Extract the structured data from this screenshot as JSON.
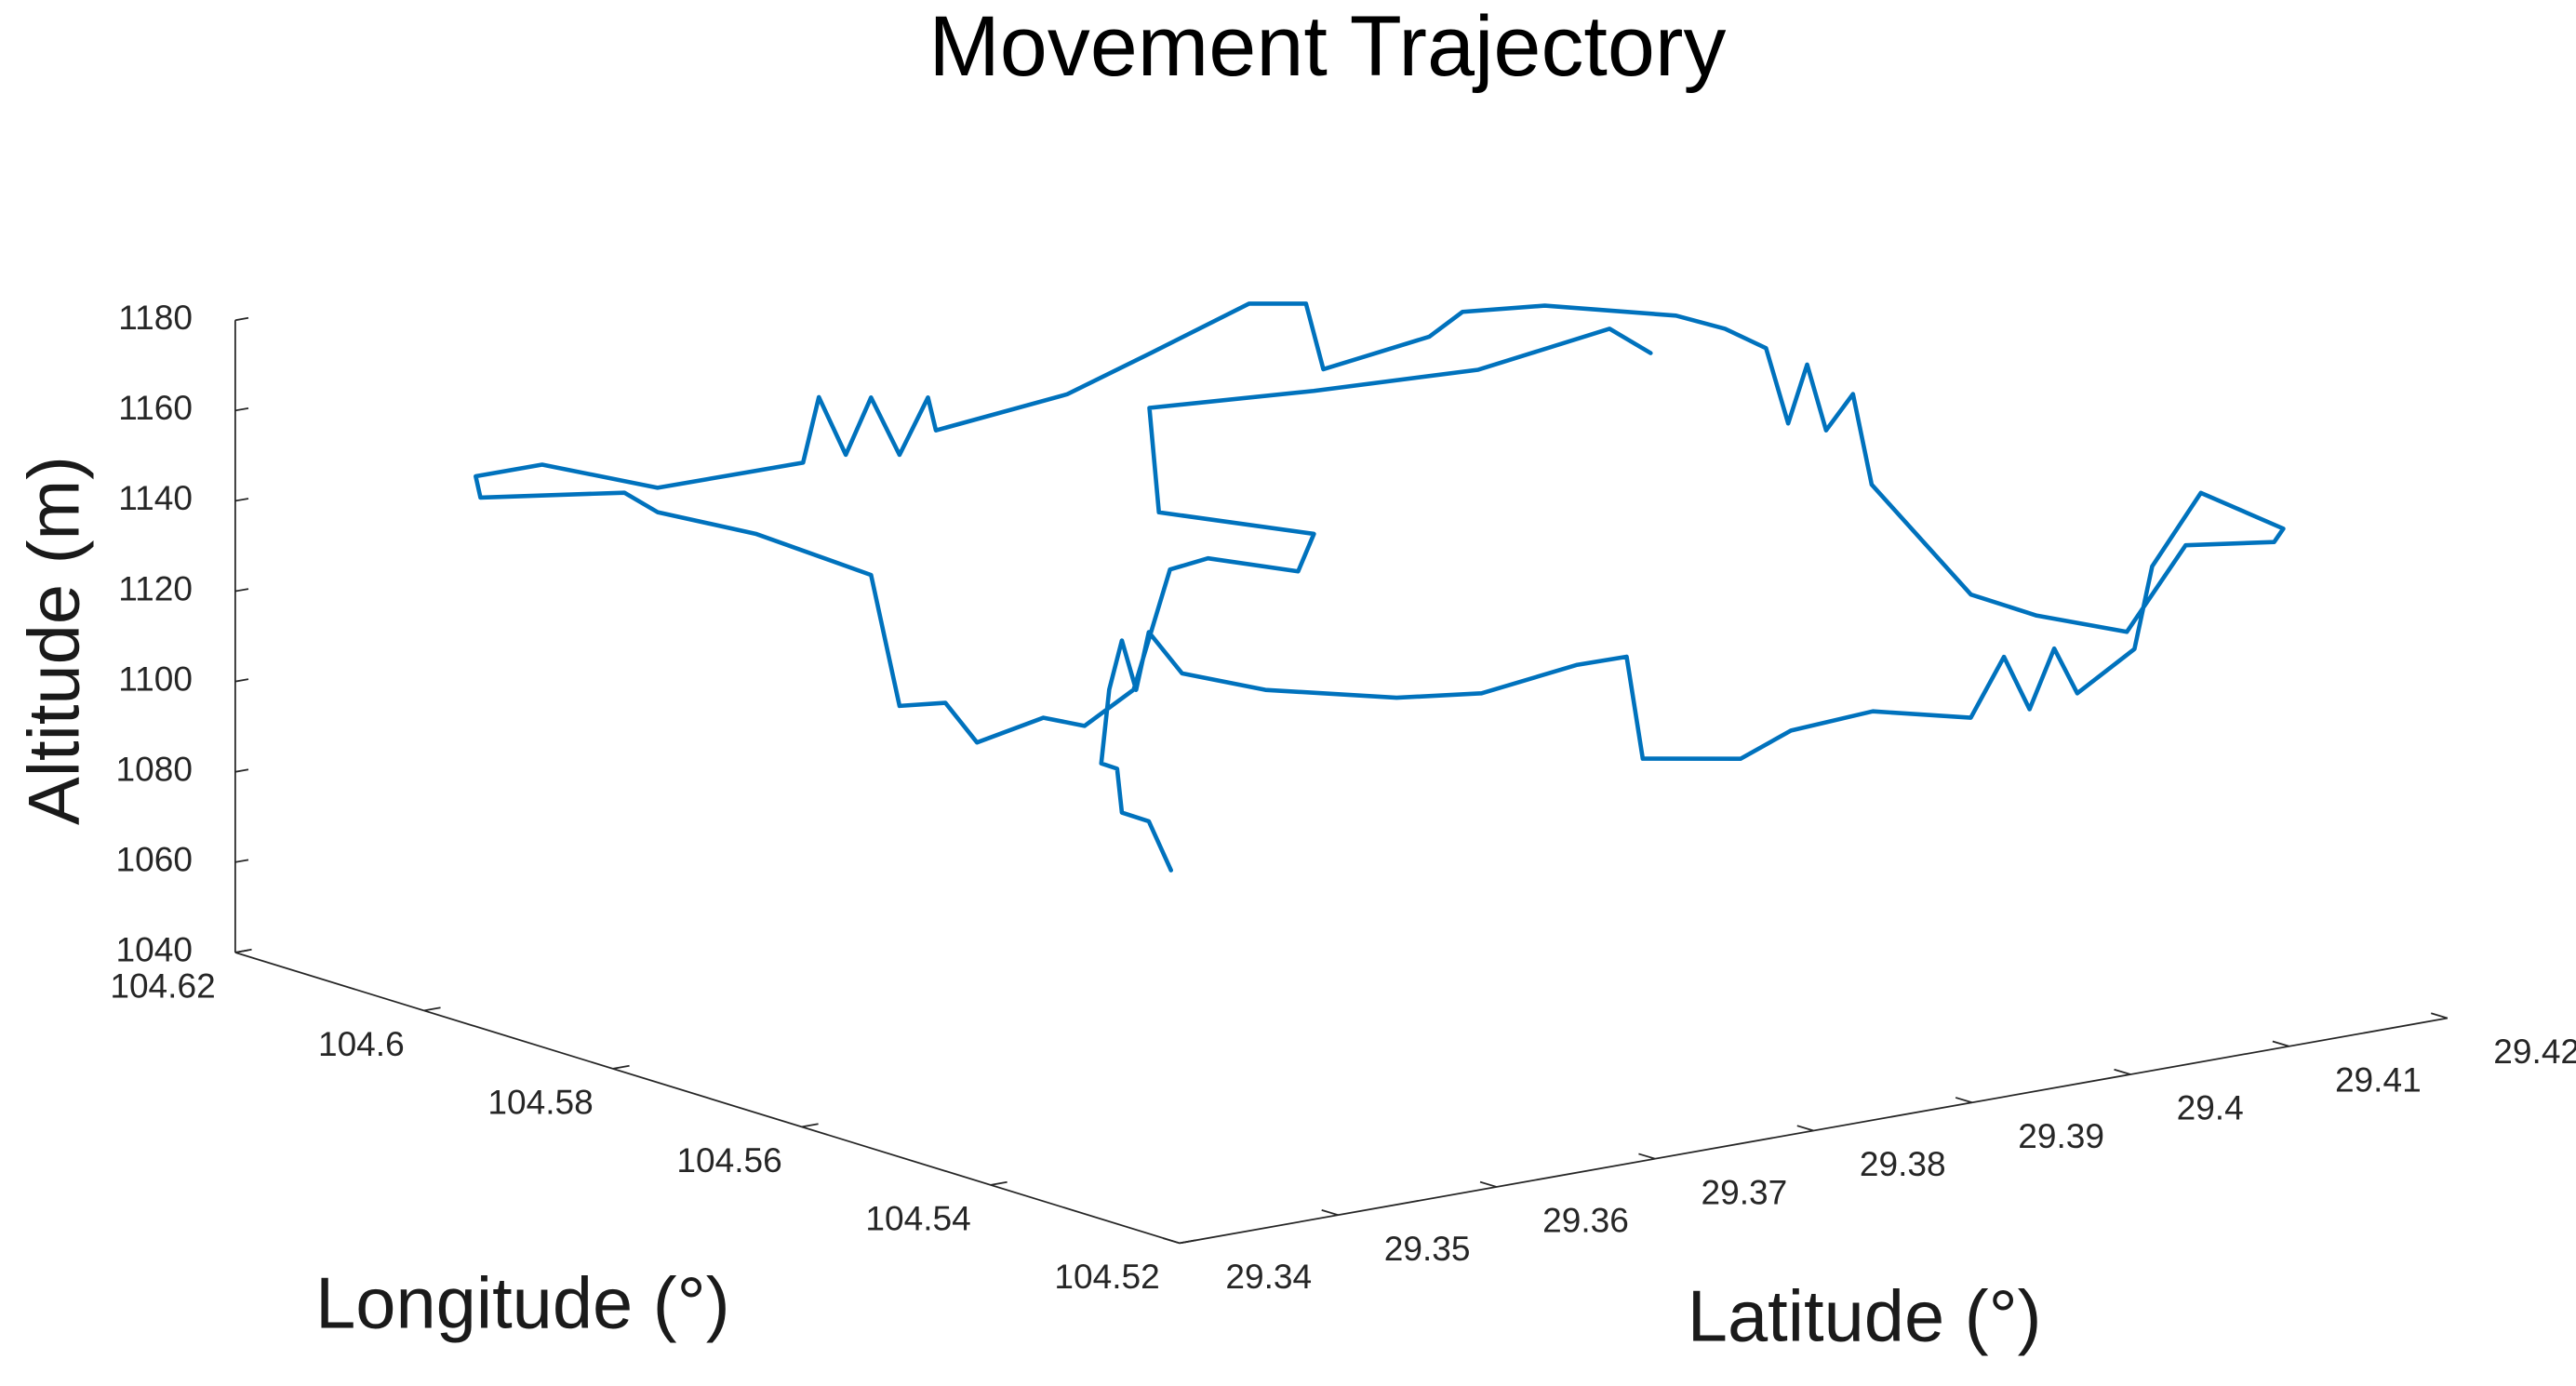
{
  "chart_data": {
    "type": "line3d",
    "title": "Movement Trajectory",
    "x_label": "Longitude (°)",
    "y_label": "Latitude (°)",
    "z_label": "Altitude (m)",
    "color": "#0072bd",
    "xlim": [
      104.52,
      104.62
    ],
    "xticks": [
      104.52,
      104.54,
      104.56,
      104.58,
      104.6,
      104.62
    ],
    "ylim": [
      29.34,
      29.42
    ],
    "yticks": [
      29.34,
      29.35,
      29.36,
      29.37,
      29.38,
      29.39,
      29.4,
      29.41,
      29.42
    ],
    "zlim": [
      1040,
      1180
    ],
    "zticks": [
      1040,
      1060,
      1080,
      1100,
      1120,
      1140,
      1160,
      1180
    ],
    "x": [
      104.582,
      104.582,
      104.582,
      104.582,
      104.582,
      104.582,
      104.582,
      104.582,
      104.582,
      104.5805,
      104.5767,
      104.5707,
      104.5669,
      104.5624,
      104.5601,
      104.5594,
      104.5549,
      104.5526,
      104.5488,
      104.5443,
      104.5428,
      104.5416,
      104.5405,
      104.5394,
      104.5367,
      104.536,
      104.5337,
      104.53,
      104.5303,
      104.5338,
      104.536,
      104.5395,
      104.5421,
      104.5459,
      104.565,
      104.566,
      104.567,
      104.568,
      104.569,
      104.571,
      104.573,
      104.578,
      104.581,
      104.582,
      104.585,
      104.586,
      104.588,
      104.591,
      104.594,
      104.598,
      104.598,
      104.599,
      104.6,
      104.601,
      104.602,
      104.6025,
      104.607,
      104.611,
      104.613,
      104.613,
      104.608,
      104.607,
      104.604,
      104.6,
      104.599,
      104.5975,
      104.5965,
      104.5945,
      104.593,
      104.5915,
      104.591,
      104.59,
      104.587,
      104.5865,
      104.591,
      104.591,
      104.584,
      104.579,
      104.574,
      104.573
    ],
    "y": [
      29.3764,
      29.375,
      29.3733,
      29.373,
      29.372,
      29.3725,
      29.3733,
      29.3742,
      29.375,
      29.3762,
      29.3792,
      29.3839,
      29.387,
      29.3903,
      29.3921,
      29.3927,
      29.3962,
      29.398,
      29.4009,
      29.4044,
      29.4056,
      29.4065,
      29.4074,
      29.4082,
      29.4102,
      29.4109,
      29.4126,
      29.4156,
      29.4152,
      29.4117,
      29.4093,
      29.4057,
      29.4031,
      29.3991,
      29.4093,
      29.4082,
      29.4076,
      29.407,
      29.4062,
      29.4048,
      29.4029,
      29.3976,
      29.3942,
      29.3927,
      29.3878,
      29.3873,
      29.3849,
      29.3805,
      29.377,
      29.3711,
      29.3706,
      29.3694,
      29.3682,
      29.3672,
      29.3661,
      29.3654,
      29.3589,
      29.354,
      29.351,
      29.3513,
      29.3574,
      29.3589,
      29.3633,
      29.3682,
      29.3694,
      29.3714,
      29.3728,
      29.3758,
      29.3775,
      29.3797,
      29.3817,
      29.3835,
      29.3874,
      29.3881,
      29.381,
      29.3804,
      29.3866,
      29.394,
      29.3993,
      29.4013
    ],
    "z": [
      1060.0,
      1071.7,
      1074.7,
      1084.6,
      1086.4,
      1102.4,
      1112.8,
      1101.3,
      1113.6,
      1104.7,
      1101.6,
      1100.8,
      1102.3,
      1109.4,
      1111.6,
      1089.1,
      1089.8,
      1096.4,
      1101.3,
      1100.6,
      1114.3,
      1102.9,
      1116.5,
      1106.8,
      1117.1,
      1135.4,
      1152.1,
      1144.7,
      1141.8,
      1141.0,
      1121.9,
      1125.5,
      1130.1,
      1154.5,
      1155.9,
      1147.9,
      1162.2,
      1148.9,
      1165.4,
      1169.3,
      1172.1,
      1174.4,
      1173.2,
      1168.0,
      1161.9,
      1176.1,
      1176.3,
      1166.2,
      1157.3,
      1150.4,
      1158.0,
      1145.4,
      1158.2,
      1145.5,
      1158.3,
      1143.9,
      1139.5,
      1145.1,
      1143.1,
      1138.2,
      1138.7,
      1134.1,
      1128.5,
      1118.9,
      1089.8,
      1090.2,
      1081.2,
      1086.1,
      1084.2,
      1091.8,
      1117.5,
      1119.5,
      1116.1,
      1124.3,
      1130.6,
      1154.1,
      1158.5,
      1161.8,
      1170.8,
      1164.8
    ]
  }
}
